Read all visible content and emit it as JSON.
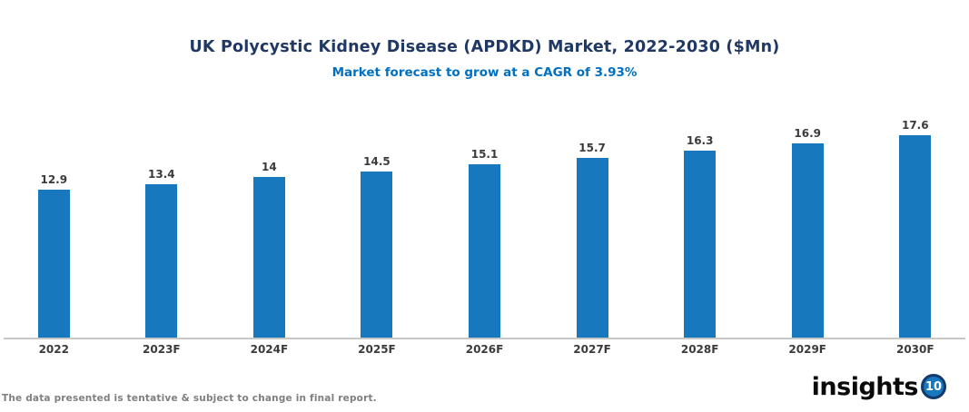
{
  "header": {
    "title": "UK Polycystic Kidney Disease (APDKD) Market, 2022-2030 ($Mn)",
    "subtitle": "Market forecast to grow at a CAGR of 3.93%"
  },
  "footer": {
    "disclaimer": "The data presented is tentative & subject to change in final report."
  },
  "logo": {
    "text": "insights",
    "badge": "10"
  },
  "colors": {
    "title": "#1F3864",
    "subtitle": "#0070C0",
    "bar": "#1778BE",
    "data_label": "#3B3B3B",
    "axis_line": "#C8C8C8",
    "footer_text": "#7F7F7F",
    "logo_badge_fill": "#1778BE",
    "logo_badge_ring": "#123A6B"
  },
  "chart_data": {
    "type": "bar",
    "title": "UK Polycystic Kidney Disease (APDKD) Market, 2022-2030 ($Mn)",
    "subtitle": "Market forecast to grow at a CAGR of 3.93%",
    "categories": [
      "2022",
      "2023F",
      "2024F",
      "2025F",
      "2026F",
      "2027F",
      "2028F",
      "2029F",
      "2030F"
    ],
    "values": [
      12.9,
      13.4,
      14,
      14.5,
      15.1,
      15.7,
      16.3,
      16.9,
      17.6
    ],
    "xlabel": "",
    "ylabel": "",
    "unit": "$Mn",
    "ylim": [
      0,
      19
    ],
    "grid": false,
    "legend": false,
    "data_labels": true,
    "bar_color": "#1778BE"
  }
}
